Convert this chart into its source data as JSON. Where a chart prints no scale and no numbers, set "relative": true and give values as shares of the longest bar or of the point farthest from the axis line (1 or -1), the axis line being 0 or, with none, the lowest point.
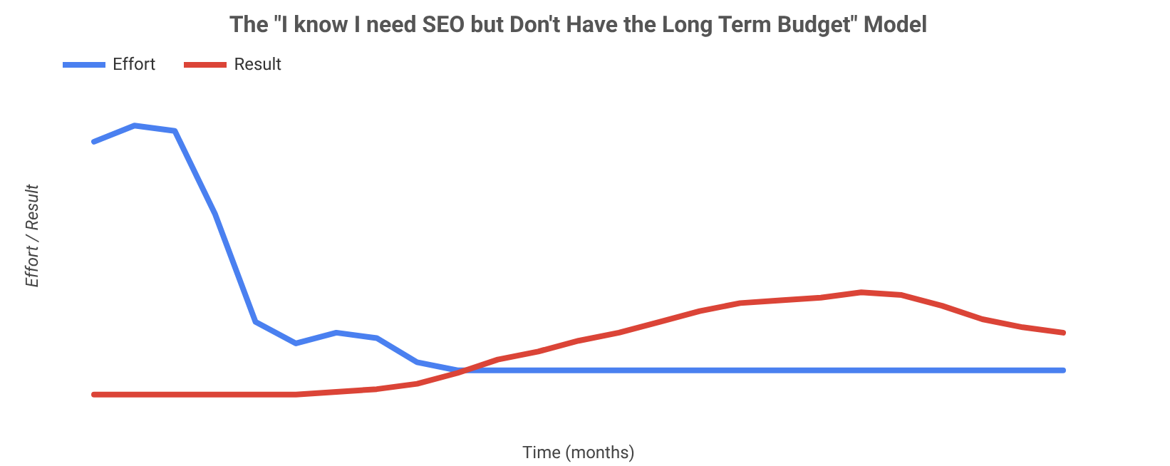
{
  "chart_data": {
    "type": "line",
    "title": "The \"I know I need SEO but Don't Have the Long Term Budget\" Model",
    "xlabel": "Time (months)",
    "ylabel": "Effort / Result",
    "relative": true,
    "legend": "top left",
    "grid": false,
    "categories": [
      null,
      null,
      null,
      null,
      null,
      null,
      null,
      null,
      null,
      null,
      null,
      null,
      null,
      null,
      null,
      null,
      null,
      null,
      null,
      null,
      null,
      null,
      null,
      null,
      null
    ],
    "series": [
      {
        "name": "Effort",
        "color": "#4a80f0",
        "values": [
          0.94,
          1.0,
          0.98,
          0.67,
          0.27,
          0.19,
          0.23,
          0.21,
          0.12,
          0.09,
          0.09,
          0.09,
          0.09,
          0.09,
          0.09,
          0.09,
          0.09,
          0.09,
          0.09,
          0.09,
          0.09,
          0.09,
          0.09,
          0.09,
          0.09
        ]
      },
      {
        "name": "Result",
        "color": "#db4437",
        "values": [
          0,
          0,
          0,
          0,
          0,
          0,
          0.01,
          0.02,
          0.04,
          0.08,
          0.13,
          0.16,
          0.2,
          0.23,
          0.27,
          0.31,
          0.34,
          0.35,
          0.36,
          0.38,
          0.37,
          0.33,
          0.28,
          0.25,
          0.23
        ]
      }
    ]
  }
}
